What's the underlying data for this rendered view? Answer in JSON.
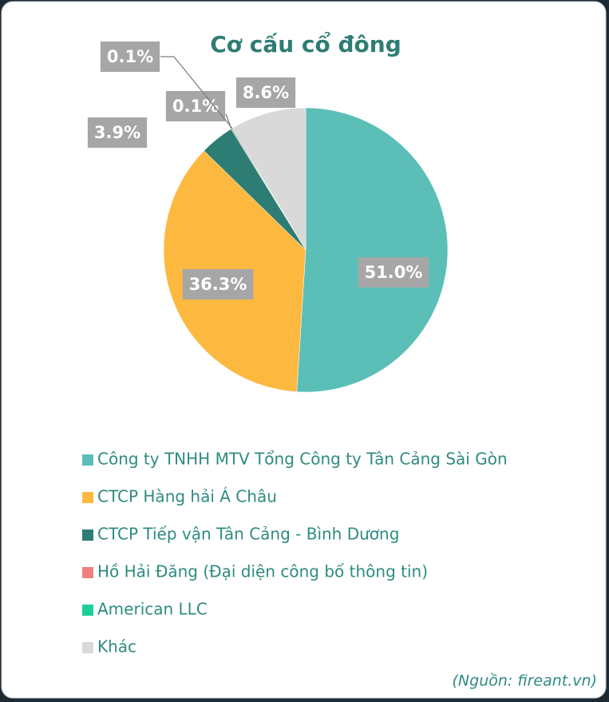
{
  "chart_data": {
    "type": "pie",
    "title": "Cơ cấu cổ đông",
    "categories": [
      "Công ty TNHH MTV Tổng Công ty Tân Cảng Sài Gòn",
      "CTCP Hàng hải Á Châu",
      "CTCP Tiếp vận Tân Cảng - Bình Dương",
      "Hồ Hải Đăng (Đại diện công bố thông tin)",
      "American LLC",
      "Khác"
    ],
    "values": [
      51.0,
      36.3,
      3.9,
      0.1,
      0.1,
      8.6
    ],
    "value_labels": [
      "51.0%",
      "36.3%",
      "3.9%",
      "0.1%",
      "0.1%",
      "8.6%"
    ],
    "colors": [
      "#5bbfb8",
      "#fdb93f",
      "#2e7d74",
      "#f08080",
      "#1bcf9a",
      "#d9d9d9"
    ],
    "legend": "bottom",
    "source": "(Nguồn: fireant.vn)"
  }
}
